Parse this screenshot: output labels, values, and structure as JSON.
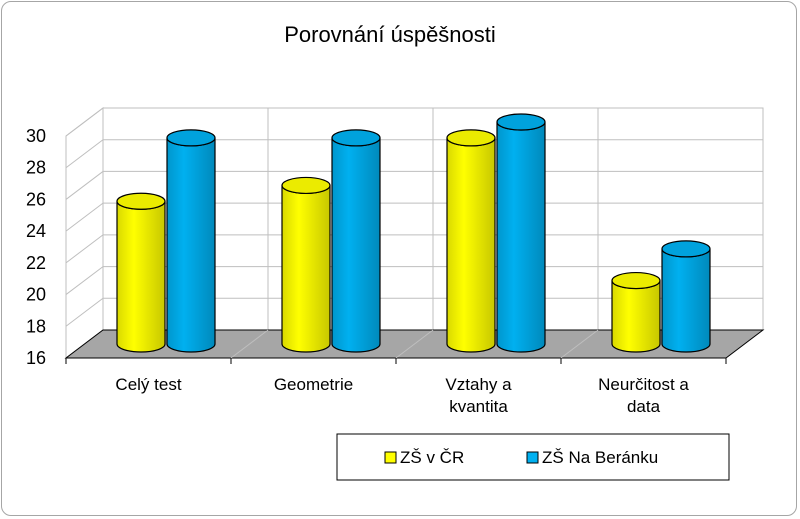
{
  "chart_data": {
    "type": "bar",
    "title": "Porovnání úspěšnosti",
    "categories": [
      [
        "Celý test"
      ],
      [
        "Geometrie"
      ],
      [
        "Vztahy a",
        "kvantita"
      ],
      [
        "Neurčitost a",
        "data"
      ]
    ],
    "series": [
      {
        "name": "ZŠ v ČR",
        "values": [
          25,
          26,
          29,
          20
        ],
        "color": "#ffff00"
      },
      {
        "name": "ZŠ Na Beránku",
        "values": [
          29,
          29,
          30,
          22
        ],
        "color": "#00b0f0"
      }
    ],
    "y_ticks": [
      16,
      18,
      20,
      22,
      24,
      26,
      28,
      30
    ],
    "ylim": [
      16,
      30
    ],
    "grid": true,
    "legend_position": "bottom",
    "style": "3d-cylinder",
    "floor_color": "#a6a6a6"
  }
}
